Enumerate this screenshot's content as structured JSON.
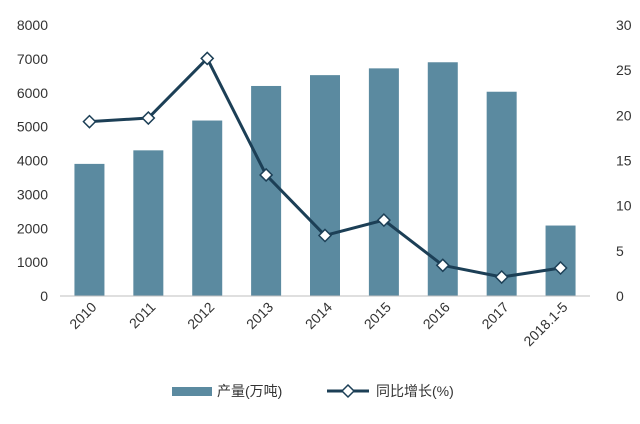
{
  "chart_data": {
    "type": "bar",
    "categories": [
      "2010",
      "2011",
      "2012",
      "2013",
      "2014",
      "2015",
      "2016",
      "2017",
      "2018.1-5"
    ],
    "series": [
      {
        "name": "产量(万吨)",
        "type": "bar",
        "axis": "left",
        "values": [
          3900,
          4300,
          5180,
          6200,
          6520,
          6720,
          6900,
          6030,
          2080
        ]
      },
      {
        "name": "同比增长(%)",
        "type": "line",
        "axis": "right",
        "values": [
          19.3,
          19.7,
          26.3,
          13.4,
          6.7,
          8.4,
          3.4,
          2.1,
          3.1
        ]
      }
    ],
    "y_left": {
      "lim": [
        0,
        8000
      ],
      "ticks": [
        "0",
        "1000",
        "2000",
        "3000",
        "4000",
        "5000",
        "6000",
        "7000",
        "8000"
      ]
    },
    "y_right": {
      "lim": [
        0,
        30
      ],
      "ticks": [
        "0",
        "5",
        "10",
        "15",
        "20",
        "25",
        "30"
      ]
    },
    "legend_position": "bottom",
    "grid": false,
    "colors": {
      "bar": "#5b8aa0",
      "line": "#1c3f56",
      "marker_fill": "#ffffff",
      "axis_text": "#333333",
      "axis_line": "#bfbfbf"
    }
  }
}
